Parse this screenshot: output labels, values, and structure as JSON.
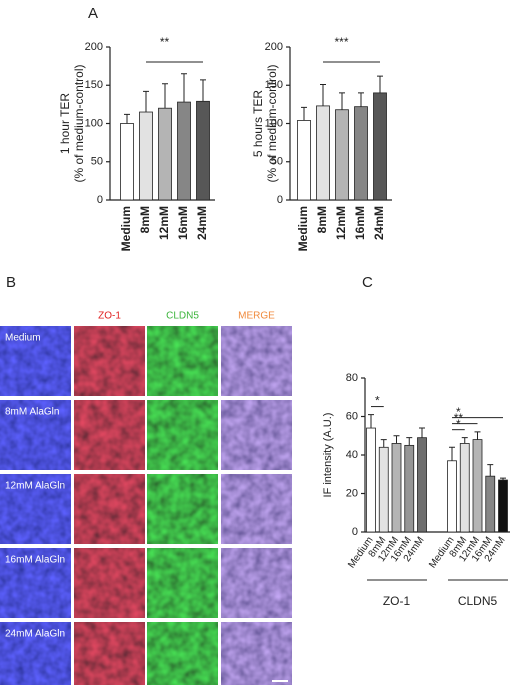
{
  "chart_data": [
    {
      "type": "bar",
      "label": "A",
      "ylabel": [
        "1 hour TER",
        "(% of medium-control)"
      ],
      "categories": [
        "Medium",
        "8mM",
        "12mM",
        "16mM",
        "24mM"
      ],
      "values": [
        100,
        115,
        120,
        128,
        129
      ],
      "errors": [
        12,
        27,
        32,
        37,
        28
      ],
      "colors": [
        "#ffffff",
        "#e2e2e2",
        "#b4b4b4",
        "#868686",
        "#575757"
      ],
      "ylim": [
        0,
        200
      ],
      "yticks": [
        0,
        50,
        100,
        150,
        200
      ],
      "annotations": [
        {
          "text": "**",
          "span": [
            1,
            4
          ]
        }
      ]
    },
    {
      "type": "bar",
      "ylabel": [
        "5 hours TER",
        "(% of medium-control)"
      ],
      "categories": [
        "Medium",
        "8mM",
        "12mM",
        "16mM",
        "24mM"
      ],
      "values": [
        104,
        123,
        118,
        122,
        140
      ],
      "errors": [
        17,
        28,
        22,
        18,
        22
      ],
      "colors": [
        "#ffffff",
        "#e2e2e2",
        "#b4b4b4",
        "#868686",
        "#575757"
      ],
      "ylim": [
        0,
        200
      ],
      "yticks": [
        0,
        50,
        100,
        150,
        200
      ],
      "annotations": [
        {
          "text": "***",
          "span": [
            1,
            4
          ]
        }
      ]
    },
    {
      "type": "bar",
      "label": "C",
      "ylabel": "IF intensity (A.U.)",
      "categories": [
        "Medium",
        "8mM",
        "12mM",
        "16mM",
        "24mM",
        "Medium",
        "8mM",
        "12mM",
        "16mM",
        "24mM"
      ],
      "values": [
        54,
        44,
        46,
        45,
        49,
        37,
        46,
        48,
        29,
        27
      ],
      "errors": [
        7,
        4,
        4,
        4,
        5,
        7,
        3,
        4,
        6,
        1
      ],
      "colors": [
        "#ffffff",
        "#e2e2e2",
        "#b4b4b4",
        "#969696",
        "#6e6e6e",
        "#ffffff",
        "#e2e2e2",
        "#b4b4b4",
        "#868686",
        "#111111"
      ],
      "groups": [
        {
          "name": "ZO-1",
          "span": [
            0,
            4
          ]
        },
        {
          "name": "CLDN5",
          "span": [
            5,
            9
          ]
        }
      ],
      "ylim": [
        0,
        80
      ],
      "yticks": [
        0,
        20,
        40,
        60,
        80
      ],
      "annotations": [
        {
          "text": "*",
          "span": [
            0,
            1
          ]
        },
        {
          "text": "*",
          "span": [
            5,
            6
          ]
        },
        {
          "text": "**",
          "span": [
            5,
            7
          ]
        },
        {
          "text": "*",
          "span": [
            5,
            9
          ]
        }
      ]
    }
  ],
  "microscopy": {
    "label": "B",
    "columns": [
      "ZO-1",
      "CLDN5",
      "MERGE"
    ],
    "rows": [
      "Medium",
      "8mM AlaGln",
      "12mM AlaGln",
      "16mM AlaGln",
      "24mM AlaGln"
    ]
  }
}
